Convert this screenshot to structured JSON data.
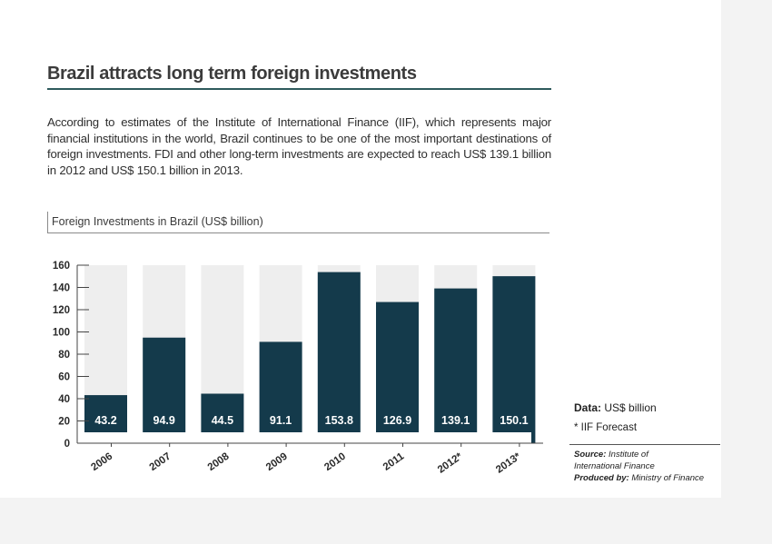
{
  "page": {
    "title": "Brazil attracts long term foreign investments",
    "intro": "According to estimates of the Institute of International Finance (IIF), which represents major financial institutions in the world, Brazil continues to be one of the most important destinations of foreign investments. FDI and other long-term investments are expected to reach US$ 139.1 billion in 2012 and US$ 150.1 billion in 2013.",
    "chart_heading": "Foreign Investments in Brazil (US$ billion)"
  },
  "notes": {
    "data_label": "Data:",
    "data_value": "US$ billion",
    "forecast": "* IIF Forecast",
    "source_label": "Source:",
    "source_value_line1": "Institute of",
    "source_value_line2": "International Finance",
    "produced_label": "Produced by:",
    "produced_value": "Ministry of Finance"
  },
  "colors": {
    "bar": "#143a4b",
    "background_bar": "#eeeeee",
    "value_label": "#ffffff",
    "title_rule": "#2e5a5c"
  },
  "chart_data": {
    "type": "bar",
    "categories": [
      "2006",
      "2007",
      "2008",
      "2009",
      "2010",
      "2011",
      "2012*",
      "2013*"
    ],
    "values": [
      43.2,
      94.9,
      44.5,
      91.1,
      153.8,
      126.9,
      139.1,
      150.1
    ],
    "value_labels": [
      "43.2",
      "94.9",
      "44.5",
      "91.1",
      "153.8",
      "126.9",
      "139.1",
      "150.1"
    ],
    "title": "Foreign Investments in Brazil (US$ billion)",
    "ylim": [
      0,
      160
    ],
    "yticks": [
      0,
      20,
      40,
      60,
      80,
      100,
      120,
      140,
      160
    ],
    "grid": false,
    "legend": "none"
  }
}
